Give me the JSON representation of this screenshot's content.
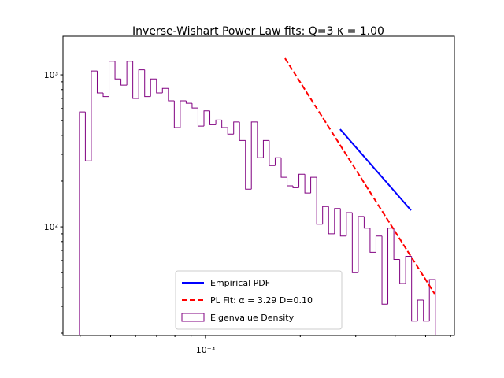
{
  "chart_data": {
    "type": "histogram",
    "title": "Inverse-Wishart Power Law fits: Q=3 κ = 1.00",
    "xlog": true,
    "ylog": true,
    "xlim": [
      0.000353,
      0.00617
    ],
    "ylim": [
      19.3,
      1795
    ],
    "xticks": [
      {
        "value": 0.001,
        "label": "10⁻³"
      }
    ],
    "xminorticks": [
      0.0004,
      0.0005,
      0.0006,
      0.0007,
      0.0008,
      0.0009,
      0.002,
      0.003,
      0.004,
      0.005,
      0.006
    ],
    "yticks": [
      {
        "value": 100,
        "label": "10²"
      },
      {
        "value": 1000,
        "label": "10³"
      }
    ],
    "yminorticks": [
      20,
      30,
      40,
      50,
      60,
      70,
      80,
      90,
      200,
      300,
      400,
      500,
      600,
      700,
      800,
      900
    ],
    "legend_loc": "lower center",
    "histogram": {
      "name": "Eigenvalue Density",
      "color": "#800080",
      "bins": [
        0.0003981,
        0.0004157,
        0.0004341,
        0.0004534,
        0.0004735,
        0.0004944,
        0.0005163,
        0.0005392,
        0.0005631,
        0.000588,
        0.0006141,
        0.0006413,
        0.0006697,
        0.0006993,
        0.0007303,
        0.0007627,
        0.0007964,
        0.0008317,
        0.0008685,
        0.000907,
        0.0009472,
        0.0009892,
        0.001033,
        0.001079,
        0.001127,
        0.001177,
        0.001229,
        0.001283,
        0.00134,
        0.001399,
        0.001462,
        0.001527,
        0.001594,
        0.001665,
        0.001739,
        0.001816,
        0.001896,
        0.00198,
        0.002068,
        0.002159,
        0.002255,
        0.002355,
        0.00246,
        0.002569,
        0.002682,
        0.002801,
        0.002925,
        0.003055,
        0.00319,
        0.003331,
        0.003479,
        0.003634,
        0.003794,
        0.003963,
        0.004138,
        0.004321,
        0.004513,
        0.004713,
        0.004921,
        0.005139,
        0.005368
      ],
      "values": [
        570,
        272,
        1060,
        760,
        720,
        1230,
        940,
        855,
        1230,
        700,
        1080,
        720,
        940,
        760,
        815,
        675,
        450,
        675,
        650,
        605,
        460,
        580,
        470,
        505,
        450,
        408,
        490,
        370,
        177,
        490,
        285,
        370,
        253,
        285,
        212,
        186,
        181,
        222,
        167,
        212,
        104,
        136,
        90,
        132,
        87,
        124,
        50,
        117,
        98,
        68,
        87,
        31,
        98,
        61,
        42.4,
        64,
        24,
        33,
        24,
        45
      ]
    },
    "series": [
      {
        "name": "Empirical PDF",
        "color": "#0000ff",
        "dash": false,
        "x": [
          0.002676,
          0.004494
        ],
        "values": [
          439,
          128.5
        ]
      },
      {
        "name": "PL Fit: α = 3.29 D=0.10",
        "color": "#ff0000",
        "dash": true,
        "x": [
          0.001789,
          0.00534
        ],
        "values": [
          1285,
          36.3
        ]
      }
    ]
  }
}
